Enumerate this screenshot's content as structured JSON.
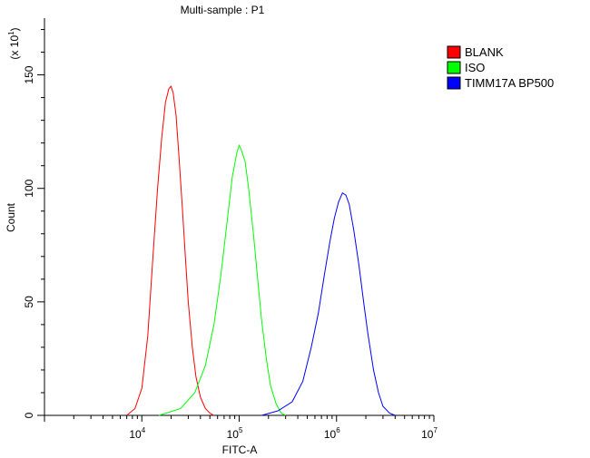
{
  "chart_data": {
    "type": "line",
    "title": "Multi-sample : P1",
    "xlabel": "FITC-A",
    "ylabel": "Count",
    "y_multiplier_label": "(x 10^1)",
    "x_scale": "log",
    "xlim": [
      1000,
      10000000
    ],
    "ylim": [
      0,
      175
    ],
    "x_ticks": [
      {
        "value": 10000,
        "base": "10",
        "exp": "4"
      },
      {
        "value": 100000,
        "base": "10",
        "exp": "5"
      },
      {
        "value": 1000000,
        "base": "10",
        "exp": "6"
      },
      {
        "value": 10000000,
        "base": "10",
        "exp": "7"
      }
    ],
    "y_ticks": [
      0,
      50,
      100,
      150
    ],
    "legend_position": "right",
    "series": [
      {
        "name": "BLANK",
        "color": "#ff0000",
        "x": [
          7000,
          8500,
          10000,
          11500,
          13000,
          14500,
          16000,
          17500,
          19000,
          20000,
          21000,
          22500,
          24000,
          26000,
          28000,
          30000,
          33000,
          36000,
          40000,
          45000,
          50000,
          55000
        ],
        "y": [
          0,
          3,
          12,
          35,
          70,
          100,
          122,
          138,
          144,
          145,
          142,
          132,
          115,
          92,
          70,
          50,
          30,
          17,
          8,
          3,
          1,
          0
        ]
      },
      {
        "name": "ISO",
        "color": "#00ff00",
        "x": [
          15000,
          25000,
          35000,
          45000,
          55000,
          65000,
          75000,
          85000,
          95000,
          100000,
          105000,
          115000,
          125000,
          140000,
          155000,
          170000,
          190000,
          210000,
          240000,
          270000,
          300000
        ],
        "y": [
          0,
          3,
          10,
          22,
          40,
          62,
          85,
          105,
          116,
          119,
          117,
          112,
          100,
          80,
          60,
          42,
          25,
          13,
          5,
          1,
          0
        ]
      },
      {
        "name": "TIMM17A BP500",
        "color": "#0000ff",
        "x": [
          170000,
          250000,
          350000,
          450000,
          550000,
          650000,
          750000,
          850000,
          950000,
          1050000,
          1150000,
          1250000,
          1350000,
          1500000,
          1700000,
          1900000,
          2100000,
          2400000,
          2700000,
          3000000,
          3500000,
          4000000
        ],
        "y": [
          0,
          2,
          6,
          15,
          30,
          45,
          62,
          76,
          87,
          94,
          98,
          97,
          93,
          82,
          66,
          50,
          36,
          20,
          10,
          4,
          1,
          0
        ]
      }
    ]
  }
}
